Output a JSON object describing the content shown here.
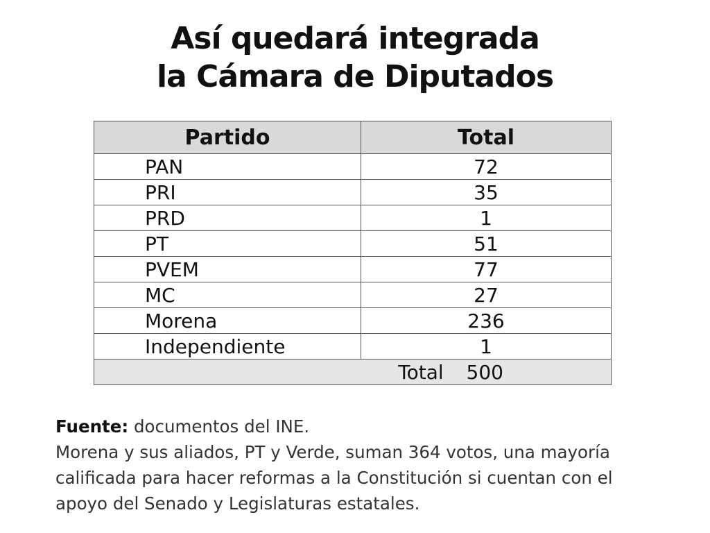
{
  "title": {
    "line1": "Así quedará integrada",
    "line2": "la Cámara de Diputados"
  },
  "chart_data": {
    "type": "table",
    "columns": [
      "Partido",
      "Total"
    ],
    "rows": [
      {
        "party": "PAN",
        "seats": 72
      },
      {
        "party": "PRI",
        "seats": 35
      },
      {
        "party": "PRD",
        "seats": 1
      },
      {
        "party": "PT",
        "seats": 51
      },
      {
        "party": "PVEM",
        "seats": 77
      },
      {
        "party": "MC",
        "seats": 27
      },
      {
        "party": "Morena",
        "seats": 236
      },
      {
        "party": "Independiente",
        "seats": 1
      }
    ],
    "total_label": "Total",
    "total_value": 500
  },
  "notes": {
    "source_label": "Fuente:",
    "source_text": " documentos del INE.",
    "line1": "Morena y sus aliados, PT y Verde, suman 364 votos, una mayoría",
    "line2": "calificada para hacer reformas a la Constitución si cuentan con el",
    "line3": "apoyo del Senado y Legislaturas estatales."
  }
}
